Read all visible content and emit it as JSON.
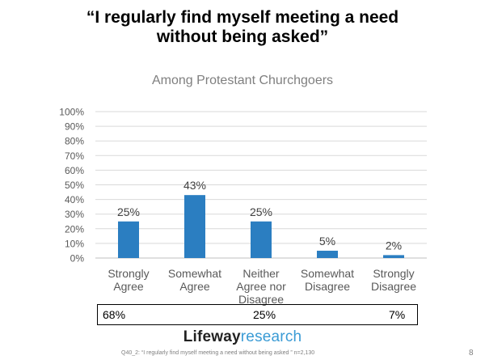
{
  "slide": {
    "title": "“I regularly find myself meeting a need\nwithout being asked”",
    "logo_brand": "Lifeway",
    "logo_research": "research",
    "footnote": "Q40_2: “I regularly find myself meeting a need without being asked ” n=2,130",
    "page_number": "8"
  },
  "summary": {
    "values": [
      "68%",
      "25%",
      "7%"
    ]
  },
  "colors": {
    "bar": "#2b7ec1",
    "grid": "#d9d9d9",
    "axis_text": "#595959",
    "title_gray": "#7f7f7f",
    "logo_research": "#3a9bd5"
  },
  "chart_data": {
    "type": "bar",
    "title": "Among Protestant Churchgoers",
    "categories": [
      "Strongly\nAgree",
      "Somewhat\nAgree",
      "Neither\nAgree nor\nDisagree",
      "Somewhat\nDisagree",
      "Strongly\nDisagree"
    ],
    "values": [
      25,
      43,
      25,
      5,
      2
    ],
    "data_labels": [
      "25%",
      "43%",
      "25%",
      "5%",
      "2%"
    ],
    "ylim": [
      0,
      100
    ],
    "yticks": [
      0,
      10,
      20,
      30,
      40,
      50,
      60,
      70,
      80,
      90,
      100
    ],
    "ytick_labels": [
      "0%",
      "10%",
      "20%",
      "30%",
      "40%",
      "50%",
      "60%",
      "70%",
      "80%",
      "90%",
      "100%"
    ],
    "grid": true,
    "xlabel": "",
    "ylabel": ""
  }
}
